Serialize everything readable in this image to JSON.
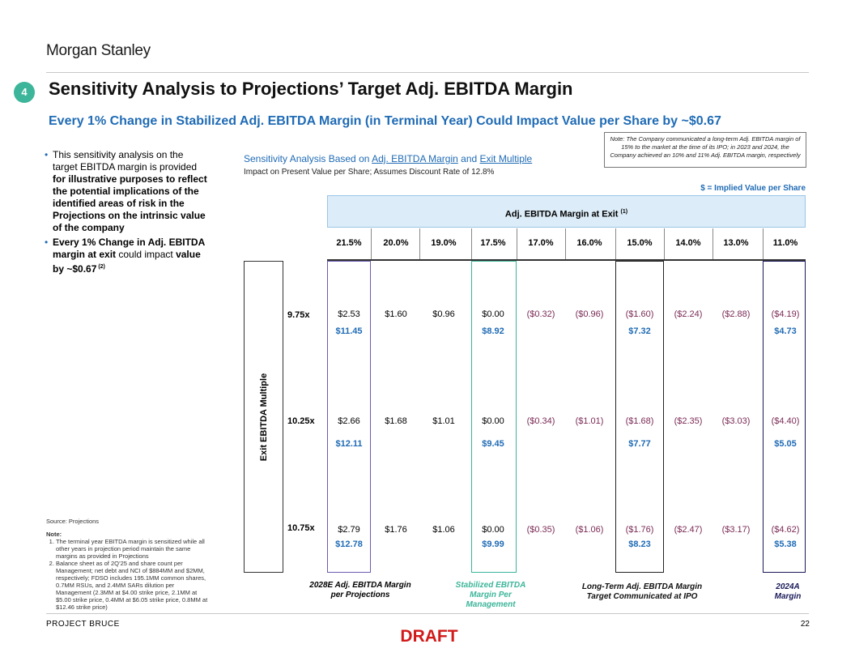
{
  "logo": "Morgan Stanley",
  "section_number": "4",
  "title": "Sensitivity Analysis to Projections’ Target Adj. EBITDA Margin",
  "subtitle": "Every 1% Change in Stabilized Adj. EBITDA Margin (in Terminal Year) Could Impact Value per Share by ~$0.67",
  "bullets": {
    "b1_pre": "This sensitivity analysis on the target EBITDA margin is provided ",
    "b1_bold": "for illustrative purposes to reflect the potential implications of the identified areas of risk in the Projections on the intrinsic value of the company",
    "b2_bold1": "Every 1% Change in Adj. EBITDA margin at exit",
    "b2_mid": " could impact ",
    "b2_bold2": "value by ~$0.67",
    "b2_sup": " (2)"
  },
  "note_box": "Note: The Company communicated a long-term Adj. EBITDA margin of 15% to the market at the time of its IPO; in 2023 and 2024, the Company achieved an 10% and 11% Adj. EBITDA margin, respectively",
  "sensitivity": {
    "title_pre": "Sensitivity Analysis Based on ",
    "title_link1": "Adj. EBITDA Margin",
    "title_mid": " and ",
    "title_link2": "Exit Multiple",
    "subtitle": "Impact on Present Value per Share; Assumes Discount Rate of 12.8%",
    "implied_legend": "$ = Implied Value per Share",
    "header": "Adj. EBITDA Margin at Exit",
    "header_sup": "(1)",
    "row_axis_label": "Exit EBITDA Multiple",
    "margins": [
      "21.5%",
      "20.0%",
      "19.0%",
      "17.5%",
      "17.0%",
      "16.0%",
      "15.0%",
      "14.0%",
      "13.0%",
      "11.0%"
    ],
    "rows": [
      {
        "multiple": "9.75x",
        "values": [
          "$2.53",
          "$1.60",
          "$0.96",
          "$0.00",
          "($0.32)",
          "($0.96)",
          "($1.60)",
          "($2.24)",
          "($2.88)",
          "($4.19)"
        ],
        "implied": {
          "0": "$11.45",
          "3": "$8.92",
          "6": "$7.32",
          "9": "$4.73"
        }
      },
      {
        "multiple": "10.25x",
        "values": [
          "$2.66",
          "$1.68",
          "$1.01",
          "$0.00",
          "($0.34)",
          "($1.01)",
          "($1.68)",
          "($2.35)",
          "($3.03)",
          "($4.40)"
        ],
        "implied": {
          "0": "$12.11",
          "3": "$9.45",
          "6": "$7.77",
          "9": "$5.05"
        }
      },
      {
        "multiple": "10.75x",
        "values": [
          "$2.79",
          "$1.76",
          "$1.06",
          "$0.00",
          "($0.35)",
          "($1.06)",
          "($1.76)",
          "($2.47)",
          "($3.17)",
          "($4.62)"
        ],
        "implied": {
          "0": "$12.78",
          "3": "$9.99",
          "6": "$8.23",
          "9": "$5.38"
        }
      }
    ],
    "captions": {
      "c1": "2028E Adj. EBITDA Margin per Projections",
      "c2": "Stabilized EBITDA Margin Per Management",
      "c3": "Long-Term Adj. EBITDA Margin Target Communicated at IPO",
      "c4": "2024A Margin"
    },
    "colors": {
      "purple": "#6b5bb0",
      "green": "#3cb59a",
      "blue": "#1f6bb5",
      "navy": "#1a1a5a"
    }
  },
  "source": "Source: Projections",
  "notes": {
    "label": "Note:",
    "n1": "The terminal year EBITDA margin is sensitized while all other years in projection period maintain the same margins as provided in Projections",
    "n2": "Balance sheet as of 2Q’25 and share count per Management; net debt and NCI of $884MM and $2MM, respectively; FDSO includes 195.1MM common shares, 0.7MM RSUs, and 2.4MM SARs dilution per Management (2.3MM at $4.00 strike price, 2.1MM at $5.00 strike price, 0.4MM at $6.05 strike price, 0.8MM at $12.46 strike price)"
  },
  "footer": "PROJECT BRUCE",
  "page_number": "22",
  "draft": "DRAFT"
}
